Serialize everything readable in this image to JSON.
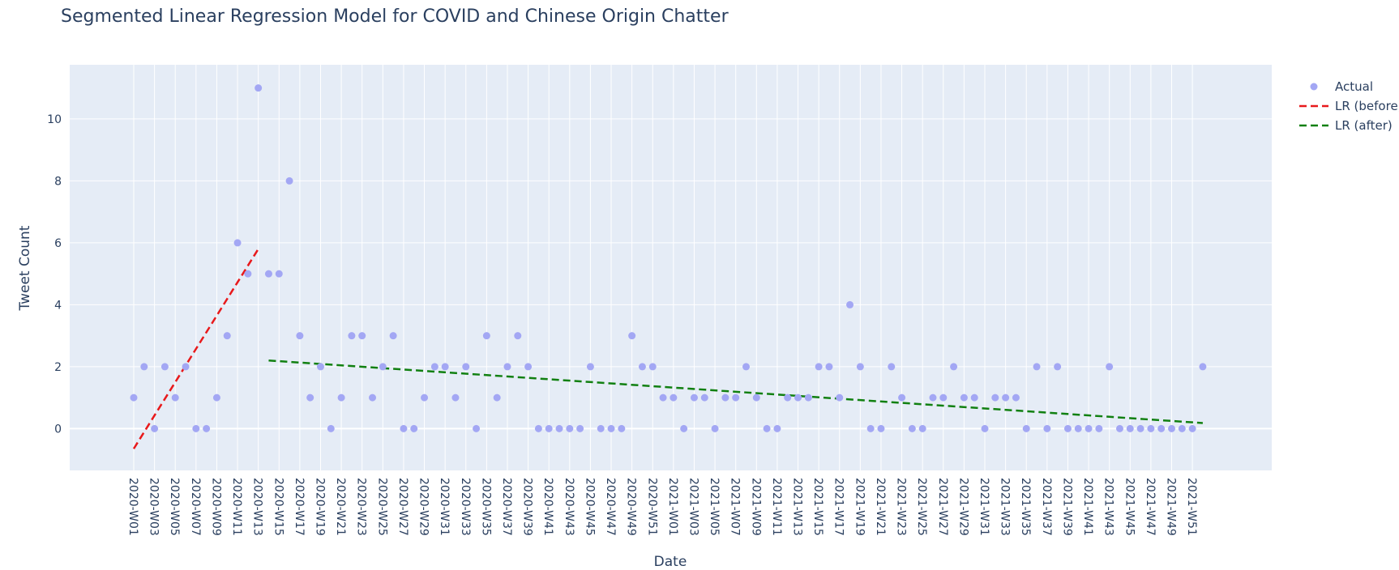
{
  "chart_data": {
    "type": "scatter",
    "title": "Segmented Linear Regression Model for COVID and Chinese Origin Chatter",
    "xlabel": "Date",
    "ylabel": "Tweet Count",
    "ylim": [
      -1.35,
      11.75
    ],
    "yticks": [
      0,
      2,
      4,
      6,
      8,
      10
    ],
    "grid": true,
    "legend_position": "top-right",
    "x": [
      "2020-W01",
      "2020-W02",
      "2020-W03",
      "2020-W04",
      "2020-W05",
      "2020-W06",
      "2020-W07",
      "2020-W08",
      "2020-W09",
      "2020-W10",
      "2020-W11",
      "2020-W12",
      "2020-W13",
      "2020-W14",
      "2020-W15",
      "2020-W16",
      "2020-W17",
      "2020-W18",
      "2020-W19",
      "2020-W20",
      "2020-W21",
      "2020-W22",
      "2020-W23",
      "2020-W24",
      "2020-W25",
      "2020-W26",
      "2020-W27",
      "2020-W28",
      "2020-W29",
      "2020-W30",
      "2020-W31",
      "2020-W32",
      "2020-W33",
      "2020-W34",
      "2020-W35",
      "2020-W36",
      "2020-W37",
      "2020-W38",
      "2020-W39",
      "2020-W40",
      "2020-W41",
      "2020-W42",
      "2020-W43",
      "2020-W44",
      "2020-W45",
      "2020-W46",
      "2020-W47",
      "2020-W48",
      "2020-W49",
      "2020-W50",
      "2020-W51",
      "2020-W52",
      "2021-W01",
      "2021-W02",
      "2021-W03",
      "2021-W04",
      "2021-W05",
      "2021-W06",
      "2021-W07",
      "2021-W08",
      "2021-W09",
      "2021-W10",
      "2021-W11",
      "2021-W12",
      "2021-W13",
      "2021-W14",
      "2021-W15",
      "2021-W16",
      "2021-W17",
      "2021-W18",
      "2021-W19",
      "2021-W20",
      "2021-W21",
      "2021-W22",
      "2021-W23",
      "2021-W24",
      "2021-W25",
      "2021-W26",
      "2021-W27",
      "2021-W28",
      "2021-W29",
      "2021-W30",
      "2021-W31",
      "2021-W32",
      "2021-W33",
      "2021-W34",
      "2021-W35",
      "2021-W36",
      "2021-W37",
      "2021-W38",
      "2021-W39",
      "2021-W40",
      "2021-W41",
      "2021-W42",
      "2021-W43",
      "2021-W44",
      "2021-W45",
      "2021-W46",
      "2021-W47",
      "2021-W48",
      "2021-W49",
      "2021-W50",
      "2021-W51",
      "2021-W52"
    ],
    "xticks": [
      "2020-W01",
      "2020-W03",
      "2020-W05",
      "2020-W07",
      "2020-W09",
      "2020-W11",
      "2020-W13",
      "2020-W15",
      "2020-W17",
      "2020-W19",
      "2020-W21",
      "2020-W23",
      "2020-W25",
      "2020-W27",
      "2020-W29",
      "2020-W31",
      "2020-W33",
      "2020-W35",
      "2020-W37",
      "2020-W39",
      "2020-W41",
      "2020-W43",
      "2020-W45",
      "2020-W47",
      "2020-W49",
      "2020-W51",
      "2021-W01",
      "2021-W03",
      "2021-W05",
      "2021-W07",
      "2021-W09",
      "2021-W11",
      "2021-W13",
      "2021-W15",
      "2021-W17",
      "2021-W19",
      "2021-W21",
      "2021-W23",
      "2021-W25",
      "2021-W27",
      "2021-W29",
      "2021-W31",
      "2021-W33",
      "2021-W35",
      "2021-W37",
      "2021-W39",
      "2021-W41",
      "2021-W43",
      "2021-W45",
      "2021-W47",
      "2021-W49",
      "2021-W51"
    ],
    "series": [
      {
        "name": "Actual",
        "mode": "markers",
        "color": "#a3a7f4",
        "values": [
          1,
          2,
          0,
          2,
          1,
          2,
          0,
          0,
          1,
          3,
          6,
          5,
          11,
          5,
          5,
          8,
          3,
          1,
          2,
          0,
          1,
          3,
          3,
          1,
          2,
          3,
          0,
          0,
          1,
          2,
          2,
          1,
          2,
          0,
          3,
          1,
          2,
          3,
          2,
          0,
          0,
          0,
          0,
          0,
          2,
          0,
          0,
          0,
          3,
          2,
          2,
          1,
          1,
          0,
          1,
          1,
          0,
          1,
          1,
          2,
          1,
          0,
          0,
          1,
          1,
          1,
          2,
          2,
          1,
          4,
          2,
          0,
          0,
          2,
          1,
          0,
          0,
          1,
          1,
          2,
          1,
          1,
          0,
          1,
          1,
          1,
          0,
          2,
          0,
          2,
          0,
          0,
          0,
          0,
          2,
          0,
          0,
          0,
          0,
          0,
          0,
          0,
          0,
          2
        ]
      },
      {
        "name": "LR (before)",
        "mode": "lines",
        "dash": "dash",
        "color": "#e8191b",
        "points": [
          {
            "x": "2020-W01",
            "y": -0.65
          },
          {
            "x": "2020-W13",
            "y": 5.8
          }
        ]
      },
      {
        "name": "LR (after)",
        "mode": "lines",
        "dash": "dash",
        "color": "#118011",
        "points": [
          {
            "x": "2020-W14",
            "y": 2.2
          },
          {
            "x": "2021-W52",
            "y": 0.18
          }
        ]
      }
    ]
  }
}
